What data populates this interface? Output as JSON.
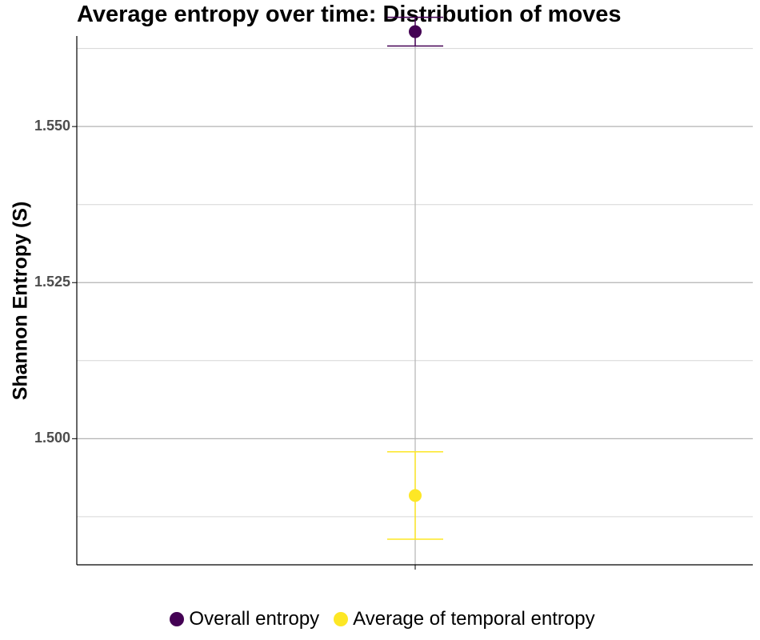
{
  "chart_data": {
    "type": "scatter",
    "title": "Average entropy over time: Distribution of moves",
    "xlabel": "",
    "ylabel": "Shannon Entropy (S)",
    "ylim": [
      1.4798,
      1.5645
    ],
    "yticks": [
      1.5,
      1.525,
      1.55
    ],
    "ytick_labels": [
      "1.500",
      "1.525",
      "1.550"
    ],
    "grid": true,
    "legend_position": "bottom",
    "series": [
      {
        "name": "Overall entropy",
        "color": "#440154",
        "y": 1.5652,
        "ymin": 1.5629,
        "ymax": 1.5675
      },
      {
        "name": "Average of temporal entropy",
        "color": "#FDE725",
        "y": 1.4909,
        "ymin": 1.4839,
        "ymax": 1.4979
      }
    ]
  }
}
